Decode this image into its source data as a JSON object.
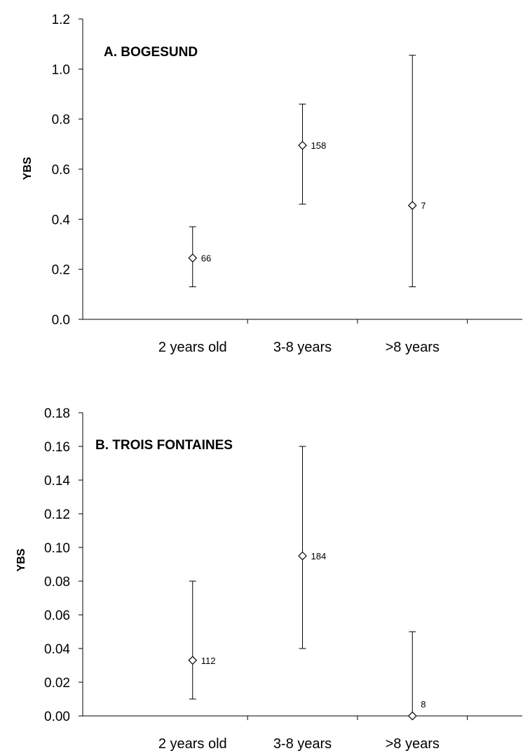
{
  "chart_data": [
    {
      "type": "scatter",
      "title": "A. BOGESUND",
      "ylabel": "YBS",
      "xlabel": "",
      "ylim": [
        0,
        1.2
      ],
      "yticks": [
        "0.0",
        "0.2",
        "0.4",
        "0.6",
        "0.8",
        "1.0",
        "1.2"
      ],
      "categories": [
        "2 years old",
        "3-8 years",
        ">8 years"
      ],
      "grid": false,
      "marker": "open-diamond",
      "values": [
        0.245,
        0.695,
        0.455
      ],
      "lower": [
        0.13,
        0.46,
        0.13
      ],
      "upper": [
        0.37,
        0.86,
        1.055
      ],
      "sample_sizes": [
        "66",
        "158",
        "7"
      ]
    },
    {
      "type": "scatter",
      "title": "B. TROIS FONTAINES",
      "ylabel": "YBS",
      "xlabel": "",
      "ylim": [
        0,
        0.18
      ],
      "yticks": [
        "0.00",
        "0.02",
        "0.04",
        "0.06",
        "0.08",
        "0.10",
        "0.12",
        "0.14",
        "0.16",
        "0.18"
      ],
      "categories": [
        "2 years old",
        "3-8 years",
        ">8 years"
      ],
      "grid": false,
      "marker": "open-diamond",
      "values": [
        0.033,
        0.095,
        0.0
      ],
      "lower": [
        0.01,
        0.04,
        0.0
      ],
      "upper": [
        0.08,
        0.16,
        0.05
      ],
      "sample_sizes": [
        "112",
        "184",
        "8"
      ]
    }
  ]
}
